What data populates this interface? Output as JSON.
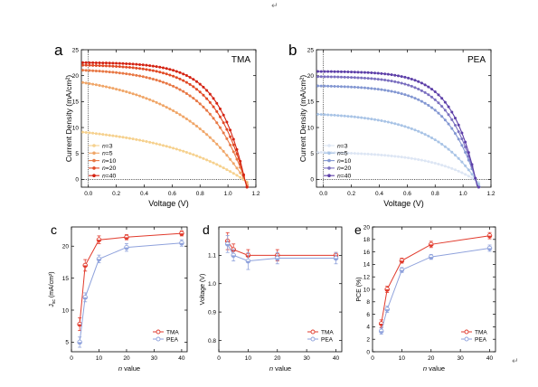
{
  "return_mark": "↵",
  "colors": {
    "TMA": [
      "#f6d18e",
      "#f0a668",
      "#e87845",
      "#e14a25",
      "#d42312"
    ],
    "PEA": [
      "#dde6f4",
      "#a9c4e6",
      "#8397d2",
      "#7a6fbf",
      "#5d3fa8"
    ],
    "TMA_summary": "#e13a2c",
    "PEA_summary": "#8fa2dc"
  },
  "chart_data": [
    {
      "panel": "a",
      "type": "line",
      "inset_label": "TMA",
      "xlabel": "Voltage (V)",
      "ylabel": "Current Density (mA/cm²)",
      "xlim": [
        -0.05,
        1.2
      ],
      "ylim": [
        -1.5,
        25
      ],
      "xticks": [
        "0.0",
        "0.2",
        "0.4",
        "0.6",
        "0.8",
        "1.0",
        "1.2"
      ],
      "yticks": [
        "0",
        "5",
        "10",
        "15",
        "20",
        "25"
      ],
      "legend_position": "bottom-left",
      "series": [
        {
          "name": "n=3",
          "jsc": 9.0,
          "voc": 1.11,
          "shape": 0.55
        },
        {
          "name": "n=5",
          "jsc": 18.5,
          "voc": 1.12,
          "shape": 0.45
        },
        {
          "name": "n=10",
          "jsc": 21.0,
          "voc": 1.12,
          "shape": 0.25
        },
        {
          "name": "n=20",
          "jsc": 22.0,
          "voc": 1.12,
          "shape": 0.2
        },
        {
          "name": "n=40",
          "jsc": 22.5,
          "voc": 1.12,
          "shape": 0.17
        }
      ]
    },
    {
      "panel": "b",
      "type": "line",
      "inset_label": "PEA",
      "xlabel": "Voltage (V)",
      "ylabel": "Current Density (mA/cm²)",
      "xlim": [
        -0.05,
        1.2
      ],
      "ylim": [
        -1.5,
        25
      ],
      "xticks": [
        "0.0",
        "0.2",
        "0.4",
        "0.6",
        "0.8",
        "1.0",
        "1.2"
      ],
      "yticks": [
        "0",
        "5",
        "10",
        "15",
        "20",
        "25"
      ],
      "legend_position": "bottom-left",
      "series": [
        {
          "name": "n=3",
          "jsc": 5.2,
          "voc": 1.08,
          "shape": 0.3
        },
        {
          "name": "n=5",
          "jsc": 12.5,
          "voc": 1.09,
          "shape": 0.3
        },
        {
          "name": "n=10",
          "jsc": 18.0,
          "voc": 1.09,
          "shape": 0.2
        },
        {
          "name": "n=20",
          "jsc": 19.8,
          "voc": 1.09,
          "shape": 0.18
        },
        {
          "name": "n=40",
          "jsc": 20.8,
          "voc": 1.09,
          "shape": 0.16
        }
      ]
    },
    {
      "panel": "c",
      "type": "line",
      "xlabel": "n value",
      "ylabel_main": "J",
      "ylabel_sub": "sc",
      "ylabel_unit": " (mA/cm²)",
      "xlim": [
        0,
        42
      ],
      "ylim": [
        3.5,
        23
      ],
      "xticks": [
        "0",
        "10",
        "20",
        "30",
        "40"
      ],
      "yticks": [
        "5",
        "10",
        "15",
        "20"
      ],
      "legend_position": "bottom-right",
      "x": [
        3,
        5,
        10,
        20,
        40
      ],
      "series": [
        {
          "name": "TMA",
          "values": [
            7.8,
            17.0,
            21.0,
            21.4,
            22.0
          ],
          "errors": [
            1.0,
            0.9,
            0.6,
            0.4,
            0.4
          ]
        },
        {
          "name": "PEA",
          "values": [
            5.0,
            12.0,
            18.0,
            19.8,
            20.5
          ],
          "errors": [
            0.8,
            0.7,
            0.6,
            0.6,
            0.5
          ]
        }
      ]
    },
    {
      "panel": "d",
      "type": "line",
      "xlabel": "n value",
      "ylabel": "Voltage (V)",
      "xlim": [
        0,
        42
      ],
      "ylim": [
        0.76,
        1.2
      ],
      "xticks": [
        "0",
        "10",
        "20",
        "30",
        "40"
      ],
      "yticks": [
        "0.8",
        "0.9",
        "1.0",
        "1.1"
      ],
      "legend_position": "bottom-right",
      "x": [
        3,
        5,
        10,
        20,
        40
      ],
      "series": [
        {
          "name": "TMA",
          "values": [
            1.15,
            1.12,
            1.1,
            1.1,
            1.1
          ],
          "errors": [
            0.03,
            0.02,
            0.02,
            0.02,
            0.01
          ]
        },
        {
          "name": "PEA",
          "values": [
            1.14,
            1.1,
            1.08,
            1.09,
            1.09
          ],
          "errors": [
            0.03,
            0.02,
            0.03,
            0.02,
            0.02
          ]
        }
      ]
    },
    {
      "panel": "e",
      "type": "line",
      "xlabel": "n value",
      "ylabel": "PCE (%)",
      "xlim": [
        0,
        42
      ],
      "ylim": [
        0,
        20
      ],
      "xticks": [
        "0",
        "10",
        "20",
        "30",
        "40"
      ],
      "yticks": [
        "0",
        "2",
        "4",
        "6",
        "8",
        "10",
        "12",
        "14",
        "16",
        "18",
        "20"
      ],
      "legend_position": "bottom-right",
      "x": [
        3,
        5,
        10,
        20,
        40
      ],
      "series": [
        {
          "name": "TMA",
          "values": [
            4.5,
            10.0,
            14.6,
            17.2,
            18.6
          ],
          "errors": [
            0.6,
            0.5,
            0.4,
            0.5,
            0.5
          ]
        },
        {
          "name": "PEA",
          "values": [
            3.3,
            6.8,
            13.1,
            15.2,
            16.6
          ],
          "errors": [
            0.5,
            0.5,
            0.4,
            0.4,
            0.5
          ]
        }
      ]
    }
  ]
}
